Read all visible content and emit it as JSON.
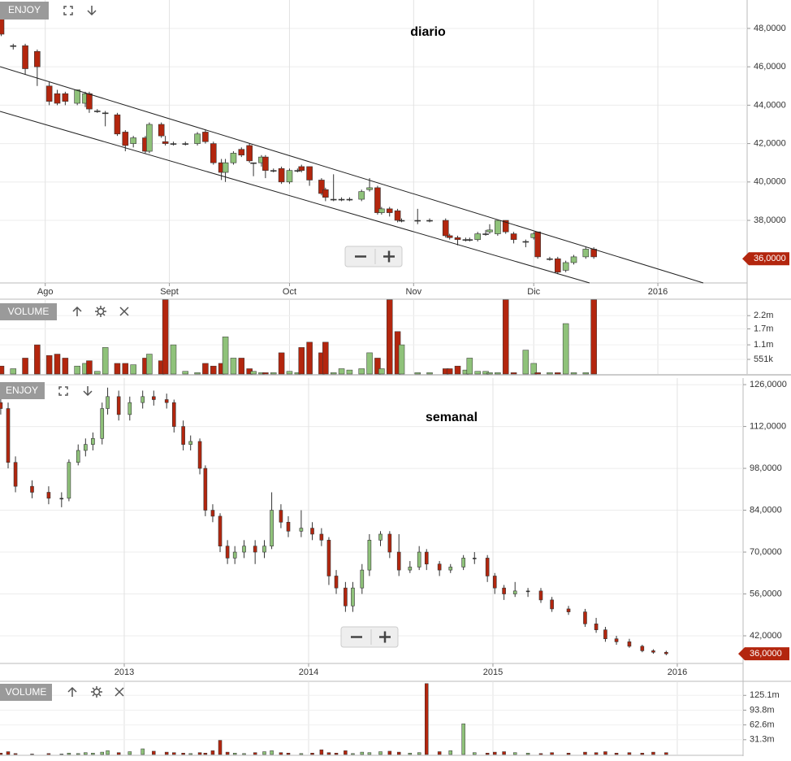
{
  "chart_data": [
    {
      "type": "candlestick",
      "title": "diario",
      "symbol": "ENJOY",
      "volume_title": "VOLUME",
      "last_price": {
        "value": 36,
        "label": "36,0000"
      },
      "up_color": "#8fc27a",
      "down_color": "#b3260e",
      "grid": true,
      "xlim": [
        19.7,
        206.3
      ],
      "xticks": [
        {
          "value": 31,
          "label": "Ago"
        },
        {
          "value": 62,
          "label": "Sept"
        },
        {
          "value": 92,
          "label": "Oct"
        },
        {
          "value": 123,
          "label": "Nov"
        },
        {
          "value": 153,
          "label": "Dic"
        },
        {
          "value": 184,
          "label": "2016"
        }
      ],
      "ylim": [
        34.74,
        49.48
      ],
      "yticks": [
        {
          "value": 38,
          "label": "38,0000"
        },
        {
          "value": 40,
          "label": "40,0000"
        },
        {
          "value": 42,
          "label": "42,0000"
        },
        {
          "value": 44,
          "label": "44,0000"
        },
        {
          "value": 46,
          "label": "46,0000"
        },
        {
          "value": 48,
          "label": "48,0000"
        }
      ],
      "x": [
        20,
        23,
        26,
        29,
        32,
        34,
        36,
        39,
        41,
        42,
        44,
        46,
        49,
        51,
        53,
        56,
        57,
        60,
        61,
        63,
        66,
        69,
        71,
        73,
        75,
        76,
        78,
        80,
        82,
        83,
        85,
        86,
        88,
        90,
        92,
        94,
        95,
        97,
        100,
        101,
        103,
        105,
        107,
        110,
        112,
        114,
        115,
        117,
        119,
        120,
        124,
        127,
        131,
        132,
        134,
        136,
        137,
        139,
        141,
        142,
        144,
        146,
        148,
        151,
        153,
        154,
        157,
        159,
        161,
        163,
        166,
        168
      ],
      "open": [
        48.8,
        47.1,
        47.1,
        46.8,
        45.0,
        44.6,
        44.6,
        44.1,
        44.1,
        44.6,
        43.7,
        43.6,
        43.5,
        42.6,
        42.0,
        42.3,
        41.6,
        43.0,
        42.1,
        42.0,
        42.0,
        42.0,
        42.6,
        42.0,
        41.0,
        40.5,
        41.0,
        41.7,
        41.9,
        41.0,
        41.0,
        41.3,
        40.6,
        40.7,
        40.0,
        40.6,
        40.8,
        40.8,
        40.1,
        39.6,
        39.1,
        39.1,
        39.1,
        39.1,
        39.6,
        39.7,
        38.4,
        38.6,
        38.5,
        38.0,
        38.0,
        38.0,
        38.0,
        37.2,
        37.1,
        37.0,
        37.0,
        37.0,
        37.3,
        37.4,
        37.3,
        38.0,
        37.3,
        36.9,
        37.1,
        37.4,
        36.0,
        36.0,
        35.4,
        35.8,
        36.1,
        36.5
      ],
      "high": [
        49.2,
        47.2,
        47.2,
        46.9,
        45.2,
        44.8,
        44.7,
        44.8,
        44.7,
        44.7,
        43.8,
        43.7,
        43.6,
        42.7,
        42.4,
        42.4,
        43.1,
        43.1,
        42.4,
        42.1,
        42.1,
        42.6,
        42.7,
        42.1,
        41.2,
        41.2,
        41.6,
        41.8,
        42.0,
        41.0,
        41.4,
        41.4,
        40.7,
        40.8,
        40.7,
        40.7,
        40.9,
        40.8,
        40.2,
        39.7,
        40.4,
        39.2,
        39.2,
        39.6,
        40.2,
        39.8,
        38.7,
        38.7,
        38.6,
        38.1,
        38.6,
        38.1,
        38.1,
        37.3,
        37.2,
        37.1,
        37.1,
        37.4,
        37.5,
        37.8,
        38.0,
        38.0,
        37.4,
        37.0,
        37.4,
        37.4,
        36.1,
        36.1,
        35.9,
        36.2,
        36.6,
        36.6
      ],
      "low": [
        47.6,
        46.9,
        45.6,
        45.0,
        44.0,
        44.0,
        44.0,
        44.0,
        43.9,
        43.6,
        43.6,
        42.9,
        42.4,
        41.6,
        41.8,
        41.5,
        41.5,
        42.3,
        41.9,
        41.9,
        41.9,
        41.9,
        42.0,
        40.9,
        40.1,
        40.0,
        40.9,
        41.3,
        41.0,
        40.3,
        40.8,
        40.2,
        40.5,
        39.9,
        39.9,
        40.5,
        40.5,
        39.8,
        39.3,
        39.0,
        39.0,
        39.0,
        39.0,
        39.0,
        39.5,
        38.3,
        38.3,
        38.2,
        37.9,
        37.9,
        37.8,
        37.9,
        37.1,
        37.0,
        36.7,
        36.9,
        36.9,
        36.9,
        37.2,
        37.3,
        37.2,
        37.3,
        36.8,
        36.6,
        37.0,
        36.0,
        35.9,
        35.2,
        35.3,
        35.7,
        36.0,
        36.0
      ],
      "close": [
        47.7,
        47.1,
        45.9,
        46.0,
        44.2,
        44.1,
        44.2,
        44.8,
        44.6,
        43.8,
        43.7,
        43.6,
        42.5,
        41.9,
        42.3,
        41.6,
        43.0,
        42.4,
        42.0,
        42.0,
        42.0,
        42.5,
        42.1,
        41.0,
        40.5,
        41.0,
        41.5,
        41.4,
        41.1,
        41.0,
        41.3,
        40.6,
        40.6,
        40.0,
        40.6,
        40.6,
        40.6,
        40.1,
        39.4,
        39.2,
        39.1,
        39.1,
        39.1,
        39.5,
        39.7,
        38.4,
        38.6,
        38.4,
        38.0,
        38.0,
        38.0,
        38.0,
        37.2,
        37.1,
        37.0,
        37.0,
        37.0,
        37.3,
        37.3,
        37.5,
        38.0,
        37.4,
        37.0,
        36.9,
        37.3,
        36.1,
        36.0,
        35.3,
        35.8,
        36.1,
        36.5,
        36.1
      ],
      "volume": [
        0.3,
        0.2,
        0.6,
        1.1,
        0.7,
        0.75,
        0.6,
        0.3,
        0.4,
        0.5,
        0.1,
        1.0,
        0.4,
        0.4,
        0.35,
        0.6,
        0.75,
        0.5,
        2.8,
        1.1,
        0.1,
        0.05,
        0.4,
        0.3,
        0.4,
        1.4,
        0.6,
        0.6,
        0.2,
        0.1,
        0.05,
        0.05,
        0.05,
        0.8,
        0.1,
        0.05,
        1.0,
        1.2,
        0.8,
        1.2,
        0.05,
        0.2,
        0.15,
        0.2,
        0.8,
        0.6,
        0.2,
        2.8,
        1.6,
        1.1,
        0.05,
        0.05,
        0.2,
        0.2,
        0.3,
        0.15,
        0.6,
        0.1,
        0.1,
        0.05,
        0.05,
        2.8,
        0.05,
        0.9,
        0.4,
        0.05,
        0.05,
        0.05,
        1.9,
        0.05,
        0.05,
        2.8
      ],
      "volume_ylim": [
        0,
        2.82
      ],
      "volume_yticks": [
        {
          "value": 0.551,
          "label": "551k"
        },
        {
          "value": 1.1,
          "label": "1.1m"
        },
        {
          "value": 1.7,
          "label": "1.7m"
        },
        {
          "value": 2.2,
          "label": "2.2m"
        }
      ]
    },
    {
      "type": "candlestick",
      "title": "semanal",
      "symbol": "ENJOY",
      "volume_title": "VOLUME",
      "last_price": {
        "value": 36,
        "label": "36,0000"
      },
      "up_color": "#8fc27a",
      "down_color": "#b3260e",
      "grid": true,
      "xlim": [
        2012.326,
        2016.357
      ],
      "xticks": [
        2013,
        2014,
        2015,
        2016
      ],
      "ylim": [
        32.76,
        128.2
      ],
      "yticks": [
        {
          "value": 42,
          "label": "42,0000"
        },
        {
          "value": 56,
          "label": "56,0000"
        },
        {
          "value": 70,
          "label": "70,0000"
        },
        {
          "value": 84,
          "label": "84,0000"
        },
        {
          "value": 98,
          "label": "98,0000"
        },
        {
          "value": 112,
          "label": "112,0000"
        },
        {
          "value": 126,
          "label": "126,0000"
        }
      ],
      "x": [
        2012.33,
        2012.37,
        2012.41,
        2012.5,
        2012.59,
        2012.66,
        2012.7,
        2012.75,
        2012.79,
        2012.83,
        2012.88,
        2012.91,
        2012.97,
        2013.03,
        2013.1,
        2013.16,
        2013.23,
        2013.27,
        2013.32,
        2013.36,
        2013.41,
        2013.44,
        2013.48,
        2013.52,
        2013.56,
        2013.6,
        2013.65,
        2013.71,
        2013.76,
        2013.8,
        2013.85,
        2013.89,
        2013.96,
        2014.02,
        2014.07,
        2014.11,
        2014.15,
        2014.2,
        2014.24,
        2014.29,
        2014.33,
        2014.39,
        2014.44,
        2014.49,
        2014.55,
        2014.6,
        2014.64,
        2014.71,
        2014.77,
        2014.84,
        2014.9,
        2014.97,
        2015.01,
        2015.06,
        2015.12,
        2015.19,
        2015.26,
        2015.32,
        2015.41,
        2015.5,
        2015.56,
        2015.61,
        2015.67,
        2015.74,
        2015.81,
        2015.87,
        2015.94
      ],
      "open": [
        120,
        118,
        100,
        92,
        90,
        88,
        88,
        100,
        104,
        106,
        108,
        118,
        122,
        116,
        120,
        122,
        121,
        120,
        112,
        106,
        107,
        98,
        84,
        82,
        72,
        68,
        70,
        72,
        70,
        72,
        84,
        80,
        77,
        78,
        76,
        74,
        62,
        58,
        52,
        58,
        64,
        74,
        76,
        70,
        64,
        65,
        70,
        66,
        64,
        65,
        68,
        68,
        62,
        58,
        56,
        57,
        57,
        54,
        51,
        50,
        46,
        44,
        41,
        40,
        38.5,
        37,
        36.5
      ],
      "high": [
        122,
        120,
        102,
        94,
        92,
        90,
        101,
        106,
        108,
        110,
        120,
        125,
        124,
        122,
        124,
        124,
        123,
        121,
        114,
        109,
        108,
        99,
        86,
        83,
        74,
        72,
        74,
        74,
        74,
        90,
        86,
        82,
        84,
        80,
        78,
        75,
        64,
        60,
        60,
        66,
        76,
        77,
        77,
        76,
        67,
        72,
        71,
        67,
        66,
        69,
        70,
        69,
        63,
        59,
        60,
        58,
        58,
        55,
        52,
        51,
        48,
        45,
        42,
        41,
        39,
        37.5,
        37
      ],
      "low": [
        116,
        98,
        90,
        88,
        86,
        85,
        87,
        99,
        102,
        104,
        106,
        116,
        114,
        114,
        118,
        119,
        118,
        110,
        104,
        104,
        96,
        82,
        80,
        70,
        66,
        66,
        68,
        66,
        68,
        71,
        78,
        75,
        75,
        74,
        72,
        59,
        56,
        50,
        50,
        56,
        62,
        72,
        68,
        62,
        63,
        64,
        64,
        62,
        63,
        64,
        66,
        60,
        56,
        54,
        55,
        55,
        53,
        50,
        49,
        45,
        43,
        40,
        39,
        38,
        36.5,
        36,
        35.5
      ],
      "close": [
        118,
        100,
        92,
        90,
        88,
        88,
        100,
        104,
        106,
        108,
        118,
        122,
        116,
        120,
        122,
        121,
        120,
        112,
        106,
        107,
        98,
        84,
        82,
        72,
        68,
        70,
        72,
        70,
        72,
        84,
        80,
        77,
        78,
        76,
        74,
        62,
        58,
        52,
        58,
        64,
        74,
        76,
        70,
        64,
        65,
        70,
        66,
        64,
        65,
        68,
        68,
        62,
        58,
        56,
        57,
        57,
        54,
        51,
        50,
        46,
        44,
        41,
        40,
        38.5,
        37,
        36.5,
        36
      ],
      "volume": [
        3,
        6,
        2,
        1,
        2,
        1,
        3,
        2,
        4,
        3,
        5,
        8,
        4,
        6,
        12,
        7,
        5,
        4,
        3,
        2,
        4,
        3,
        8,
        30,
        5,
        3,
        2,
        4,
        6,
        8,
        4,
        3,
        2,
        3,
        10,
        4,
        3,
        8,
        2,
        5,
        4,
        6,
        7,
        5,
        3,
        4,
        150,
        6,
        8,
        65,
        4,
        3,
        5,
        6,
        4,
        3,
        2,
        4,
        3,
        5,
        4,
        6,
        3,
        4,
        3,
        5,
        4
      ],
      "volume_ylim": [
        0,
        154.8
      ],
      "volume_yticks": [
        {
          "value": 31.3,
          "label": "31.3m"
        },
        {
          "value": 62.6,
          "label": "62.6m"
        },
        {
          "value": 93.8,
          "label": "93.8m"
        },
        {
          "value": 125.1,
          "label": "125.1m"
        }
      ]
    }
  ]
}
